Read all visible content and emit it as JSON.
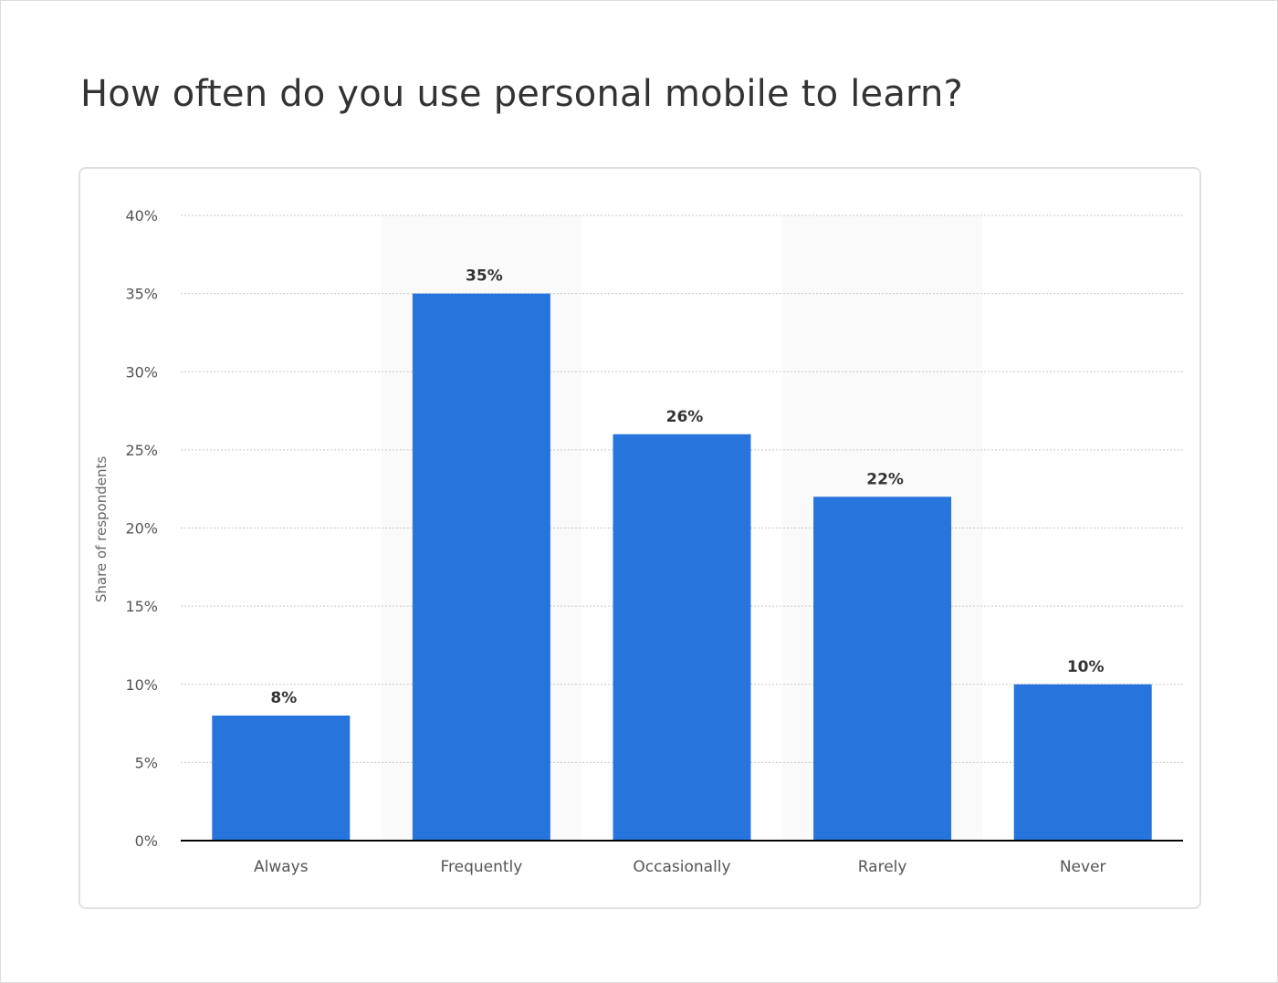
{
  "title": "How often do you use personal mobile to learn?",
  "chart_data": {
    "type": "bar",
    "title": "How often do you use personal mobile to learn?",
    "xlabel": "",
    "ylabel": "Share of respondents",
    "categories": [
      "Always",
      "Frequently",
      "Occasionally",
      "Rarely",
      "Never"
    ],
    "values": [
      8,
      35,
      26,
      22,
      10
    ],
    "data_labels": [
      "8%",
      "35%",
      "26%",
      "22%",
      "10%"
    ],
    "ylim": [
      0,
      40
    ],
    "yticks": [
      0,
      5,
      10,
      15,
      20,
      25,
      30,
      35,
      40
    ],
    "ytick_labels": [
      "0%",
      "5%",
      "10%",
      "15%",
      "20%",
      "25%",
      "30%",
      "35%",
      "40%"
    ],
    "grid": true,
    "bar_color": "#2775dc"
  }
}
